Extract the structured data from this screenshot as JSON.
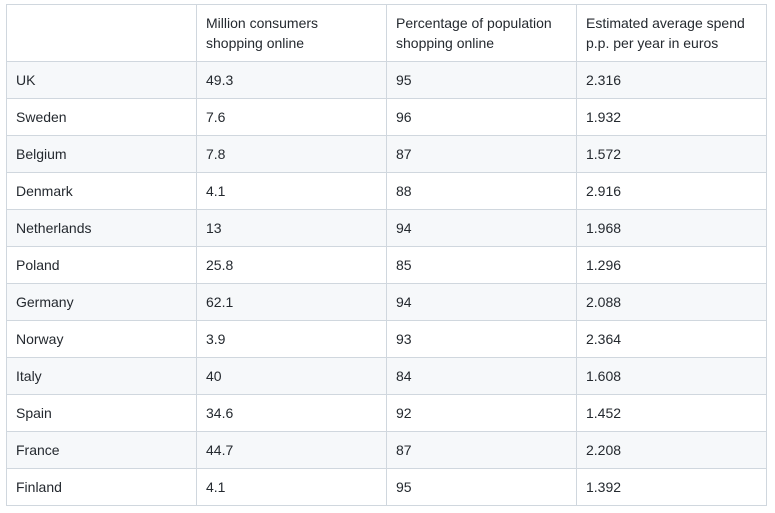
{
  "table": {
    "headers": [
      "",
      "Million consumers shopping online",
      "Percentage of population shopping online",
      "Estimated average spend p.p. per year in euros"
    ],
    "rows": [
      [
        "UK",
        "49.3",
        "95",
        "2.316"
      ],
      [
        "Sweden",
        "7.6",
        "96",
        "1.932"
      ],
      [
        "Belgium",
        "7.8",
        "87",
        "1.572"
      ],
      [
        "Denmark",
        "4.1",
        "88",
        "2.916"
      ],
      [
        "Netherlands",
        "13",
        "94",
        "1.968"
      ],
      [
        "Poland",
        "25.8",
        "85",
        "1.296"
      ],
      [
        "Germany",
        "62.1",
        "94",
        "2.088"
      ],
      [
        "Norway",
        "3.9",
        "93",
        "2.364"
      ],
      [
        "Italy",
        "40",
        "84",
        "1.608"
      ],
      [
        "Spain",
        "34.6",
        "92",
        "1.452"
      ],
      [
        "France",
        "44.7",
        "87",
        "2.208"
      ],
      [
        "Finland",
        "4.1",
        "95",
        "1.392"
      ]
    ]
  }
}
